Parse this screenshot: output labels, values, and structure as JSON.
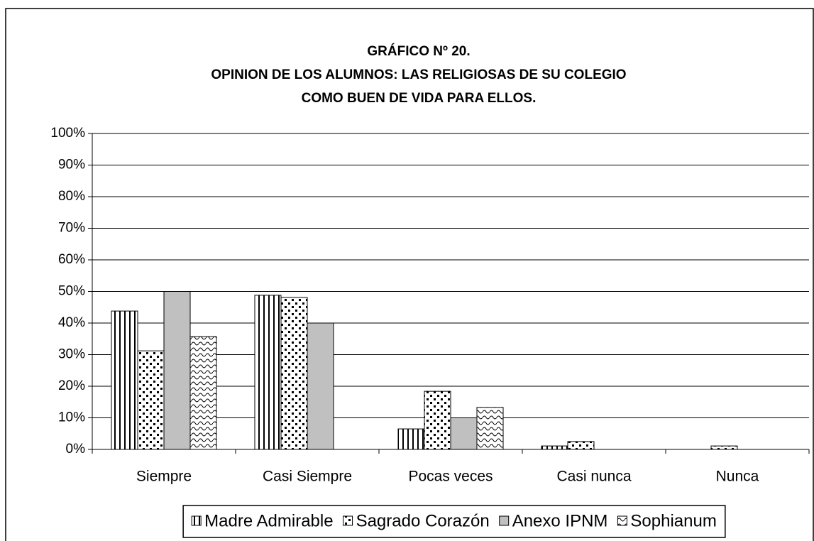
{
  "chart_data": {
    "type": "bar",
    "title": [
      "GRÁFICO Nº 20.",
      "OPINION DE LOS ALUMNOS: LAS RELIGIOSAS DE SU COLEGIO",
      "COMO BUEN DE VIDA PARA ELLOS."
    ],
    "categories": [
      "Siempre",
      "Casi Siempre",
      "Pocas veces",
      "Casi nunca",
      "Nunca"
    ],
    "series": [
      {
        "name": "Madre Admirable",
        "color": "#ffffff",
        "values": [
          43.8,
          48.8,
          6.5,
          1.1,
          0
        ]
      },
      {
        "name": "Sagrado Corazón",
        "color": "#ffffff",
        "values": [
          31.2,
          48.1,
          18.4,
          2.5,
          1.1
        ]
      },
      {
        "name": "Anexo IPNM",
        "color": "#c0c0c0",
        "values": [
          50,
          40,
          10,
          0,
          0
        ]
      },
      {
        "name": "Sophianum",
        "color": "#ffffff",
        "values": [
          35.7,
          0,
          13.3,
          0,
          0
        ]
      }
    ],
    "ylim": [
      0,
      100
    ],
    "yticks": [
      {
        "value": 0,
        "label": "0%"
      },
      {
        "value": 10,
        "label": "10%"
      },
      {
        "value": 20,
        "label": "20%"
      },
      {
        "value": 30,
        "label": "30%"
      },
      {
        "value": 40,
        "label": "40%"
      },
      {
        "value": 50,
        "label": "50%"
      },
      {
        "value": 60,
        "label": "60%"
      },
      {
        "value": 70,
        "label": "70%"
      },
      {
        "value": 80,
        "label": "80%"
      },
      {
        "value": 90,
        "label": "90%"
      },
      {
        "value": 100,
        "label": "100%"
      }
    ],
    "grid": true,
    "legend": "bottom"
  }
}
